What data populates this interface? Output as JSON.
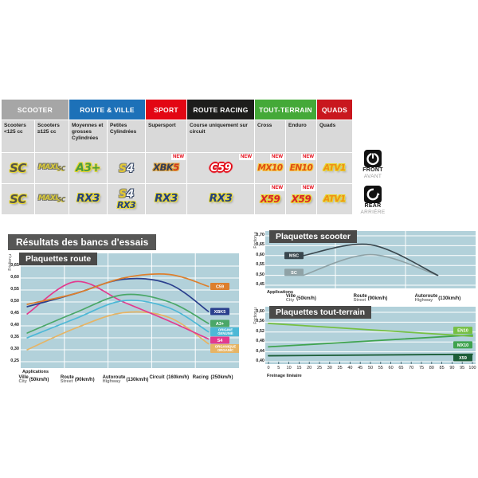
{
  "section_title": "Résultats des bancs d'essais",
  "table": {
    "new_label": "NEW",
    "groups": [
      {
        "label": "SCOOTER",
        "color": "#a6a6a6"
      },
      {
        "label": "ROUTE & VILLE",
        "color": "#1d71b8"
      },
      {
        "label": "SPORT",
        "color": "#e30613"
      },
      {
        "label": "ROUTE RACING",
        "color": "#1d1d1b"
      },
      {
        "label": "TOUT-TERRAIN",
        "color": "#44a938"
      },
      {
        "label": "QUADS",
        "color": "#c9171e"
      }
    ],
    "columns": [
      "Scooters <125 cc",
      "Scooters ≥125 cc",
      "Moyennes et grosses Cylindrées",
      "Petites Cylindrées",
      "Supersport",
      "Course uniquement sur circuit",
      "Cross",
      "Enduro",
      "Quads"
    ]
  },
  "products": {
    "sc": "SC",
    "maxi": "MAXI",
    "maxi_sc": "SC",
    "a3plus": "A3+",
    "s4_s": "S",
    "s4_4": "4",
    "xbk": "XBK",
    "xbk_5": "5",
    "c59": "C59",
    "mx10": "MX10",
    "en10": "EN10",
    "atv1": "ATV1",
    "rx3": "RX3",
    "x59": "X59",
    "s4": "S4"
  },
  "side": {
    "front": "FRONT",
    "front_fr": "AVANT",
    "rear": "REAR",
    "rear_fr": "ARRIÈRE"
  },
  "chart_data": [
    {
      "id": "route",
      "type": "line",
      "title": "Plaquettes route",
      "ylabel": "Friction µ",
      "xlabel": "Applications",
      "ylim": [
        0.25,
        0.65
      ],
      "yticks": [
        0.65,
        0.6,
        0.55,
        0.5,
        0.45,
        0.4,
        0.35,
        0.3,
        0.25
      ],
      "grid": "on",
      "legend_position": "right",
      "x_categories": [
        {
          "fr": "Ville",
          "en": "City",
          "speed": "(50km/h)"
        },
        {
          "fr": "Route",
          "en": "Street",
          "speed": "(90km/h)"
        },
        {
          "fr": "Autoroute",
          "en": "Highway",
          "speed": "(130km/h)"
        },
        {
          "fr": "Circuit",
          "en": "",
          "speed": "(160km/h)"
        },
        {
          "fr": "Racing",
          "en": "",
          "speed": "(250km/h)"
        }
      ],
      "series": [
        {
          "name": "C59",
          "label_lines": [
            "C59"
          ],
          "color": "#dd7f2d",
          "values": [
            0.49,
            0.535,
            0.6,
            0.615,
            0.565
          ]
        },
        {
          "name": "XBK5",
          "label_lines": [
            "XBK5"
          ],
          "color": "#2a3f8d",
          "values": [
            0.48,
            0.535,
            0.595,
            0.575,
            0.46
          ]
        },
        {
          "name": "A3+",
          "label_lines": [
            "A3+"
          ],
          "color": "#4aa767",
          "values": [
            0.37,
            0.455,
            0.53,
            0.5,
            0.41
          ]
        },
        {
          "name": "ORIGINE / GENUINE",
          "label_lines": [
            "ORIGINE",
            "GENUINE"
          ],
          "color": "#4db8d6",
          "values": [
            0.35,
            0.43,
            0.505,
            0.475,
            0.375
          ]
        },
        {
          "name": "S4",
          "label_lines": [
            "S4"
          ],
          "color": "#e23a8e",
          "values": [
            0.45,
            0.585,
            0.5,
            0.42,
            0.345
          ]
        },
        {
          "name": "ORGANIQUE / ORGANIC",
          "label_lines": [
            "ORGANIQUE",
            "ORGANIC"
          ],
          "color": "#e6b465",
          "values": [
            0.3,
            0.39,
            0.455,
            0.435,
            0.325
          ]
        }
      ]
    },
    {
      "id": "scooter",
      "type": "line",
      "title": "Plaquettes scooter",
      "ylabel": "Friction µ",
      "xlabel": "Applications",
      "ylim": [
        0.45,
        0.7
      ],
      "yticks": [
        0.7,
        0.65,
        0.6,
        0.55,
        0.5,
        0.45
      ],
      "grid": "on",
      "legend_position": "on-line-left",
      "x_categories": [
        {
          "fr": "Ville",
          "en": "City",
          "speed": "(50km/h)"
        },
        {
          "fr": "Route",
          "en": "Street",
          "speed": "(90km/h)"
        },
        {
          "fr": "Autoroute",
          "en": "Highway",
          "speed": "(130km/h)"
        }
      ],
      "series": [
        {
          "name": "MSC",
          "label_lines": [
            "MSC"
          ],
          "color": "#39474e",
          "values": [
            0.6,
            0.655,
            0.5
          ]
        },
        {
          "name": "SC",
          "label_lines": [
            "SC"
          ],
          "color": "#8fa2a6",
          "values": [
            0.5,
            0.605,
            0.5
          ]
        }
      ]
    },
    {
      "id": "tout-terrain",
      "type": "line",
      "title": "Plaquettes tout-terrain",
      "ylabel": "Friction µ",
      "xlabel": "Freinage linéaire",
      "ylim": [
        0.4,
        0.6
      ],
      "yticks": [
        0.6,
        0.56,
        0.52,
        0.48,
        0.44,
        0.4
      ],
      "xlim": [
        0,
        100
      ],
      "xticks": [
        0,
        5,
        10,
        15,
        20,
        25,
        30,
        35,
        40,
        45,
        50,
        55,
        60,
        65,
        70,
        75,
        80,
        85,
        90,
        95,
        100
      ],
      "grid": "on",
      "legend_position": "right",
      "series": [
        {
          "name": "EN10",
          "label_lines": [
            "EN10"
          ],
          "color": "#76c043",
          "values": [
            [
              0,
              0.555
            ],
            [
              100,
              0.503
            ]
          ]
        },
        {
          "name": "MX10",
          "label_lines": [
            "MX10"
          ],
          "color": "#3fa34f",
          "values": [
            [
              0,
              0.46
            ],
            [
              100,
              0.508
            ]
          ]
        },
        {
          "name": "X59",
          "label_lines": [
            "X59"
          ],
          "color": "#1c5e38",
          "values": [
            [
              0,
              0.424
            ],
            [
              100,
              0.43
            ]
          ]
        }
      ]
    }
  ]
}
